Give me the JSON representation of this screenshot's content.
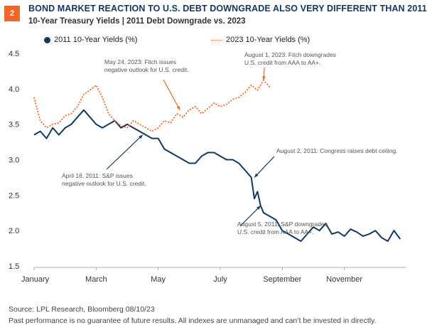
{
  "header": {
    "badge": "2",
    "title": "BOND MARKET REACTION TO U.S. DEBT DOWNGRADE ALSO VERY DIFFERENT THAN 2011",
    "subtitle": "10-Year Treasury Yields | 2011 Debt Downgrade vs. 2023"
  },
  "footer": {
    "source": "Source: LPL Research, Bloomberg 08/10/23",
    "disclaimer": "Past performance is no guarantee of future results. All indexes are unmanaged and can’t be invested in directly."
  },
  "colors": {
    "series_2011": "#12385e",
    "series_2023": "#f0672a",
    "title": "#12385e",
    "badge": "#f0672a"
  },
  "chart_data": {
    "type": "line",
    "ylim": [
      1.5,
      4.5
    ],
    "y_ticks": [
      "4.5",
      "4.0",
      "3.5",
      "3.0",
      "2.5",
      "2.0",
      "1.5"
    ],
    "x_ticks": [
      "January",
      "March",
      "May",
      "July",
      "September",
      "November"
    ],
    "xlim": [
      0,
      12
    ],
    "grid": "none",
    "legend": "top",
    "series": [
      {
        "name": "2011 10-Year Yields (%)",
        "style": "solid",
        "x": [
          0.0,
          0.2,
          0.4,
          0.6,
          0.8,
          1.0,
          1.2,
          1.4,
          1.6,
          1.8,
          2.0,
          2.2,
          2.4,
          2.6,
          2.8,
          3.0,
          3.2,
          3.4,
          3.6,
          3.8,
          4.0,
          4.2,
          4.4,
          4.6,
          4.8,
          5.0,
          5.2,
          5.4,
          5.6,
          5.8,
          6.0,
          6.2,
          6.4,
          6.6,
          6.8,
          7.0,
          7.1,
          7.2,
          7.3,
          7.4,
          7.6,
          7.8,
          8.0,
          8.2,
          8.4,
          8.6,
          8.8,
          9.0,
          9.2,
          9.4,
          9.6,
          9.8,
          10.0,
          10.2,
          10.4,
          10.6,
          10.8,
          11.0,
          11.2,
          11.4,
          11.6,
          11.8
        ],
        "values": [
          3.35,
          3.4,
          3.3,
          3.45,
          3.35,
          3.45,
          3.5,
          3.6,
          3.7,
          3.6,
          3.5,
          3.45,
          3.5,
          3.55,
          3.45,
          3.5,
          3.45,
          3.4,
          3.35,
          3.3,
          3.3,
          3.15,
          3.1,
          3.05,
          3.0,
          2.95,
          2.95,
          3.05,
          3.1,
          3.1,
          3.05,
          3.0,
          3.0,
          2.95,
          2.85,
          2.75,
          2.45,
          2.55,
          2.35,
          2.25,
          2.2,
          2.15,
          2.0,
          1.95,
          1.9,
          1.85,
          1.95,
          2.05,
          2.0,
          2.1,
          1.95,
          1.98,
          1.92,
          2.02,
          1.98,
          1.92,
          1.95,
          2.0,
          1.9,
          1.85,
          2.0,
          1.88
        ]
      },
      {
        "name": "2023 10-Year Yields (%)",
        "style": "dotted",
        "x": [
          0.0,
          0.2,
          0.4,
          0.6,
          0.8,
          1.0,
          1.2,
          1.4,
          1.6,
          1.8,
          2.0,
          2.2,
          2.4,
          2.6,
          2.8,
          3.0,
          3.2,
          3.4,
          3.6,
          3.8,
          4.0,
          4.2,
          4.4,
          4.6,
          4.8,
          5.0,
          5.2,
          5.4,
          5.6,
          5.8,
          6.0,
          6.2,
          6.4,
          6.6,
          6.8,
          7.0,
          7.2,
          7.4,
          7.6
        ],
        "values": [
          3.88,
          3.55,
          3.45,
          3.5,
          3.52,
          3.62,
          3.65,
          3.75,
          3.92,
          3.98,
          4.05,
          3.88,
          3.65,
          3.55,
          3.48,
          3.45,
          3.55,
          3.5,
          3.45,
          3.4,
          3.45,
          3.55,
          3.52,
          3.65,
          3.6,
          3.7,
          3.75,
          3.65,
          3.72,
          3.8,
          3.75,
          3.78,
          3.85,
          3.88,
          3.95,
          4.05,
          3.98,
          4.12,
          4.02
        ]
      }
    ],
    "annotations": [
      {
        "lines": [
          "May 24, 2023: Fitch issues",
          "negative outlook for U.S. credit."
        ],
        "x": 4.7,
        "y": 3.7
      },
      {
        "lines": [
          "August 1, 2023: Fitch downgrades",
          "U.S. credit from AAA to AA+."
        ],
        "x": 7.4,
        "y": 4.12
      },
      {
        "lines": [
          "August 2, 2011: Congress raises debt ceiling."
        ],
        "x": 7.1,
        "y": 2.75
      },
      {
        "lines": [
          "April 18, 2011: S&P issues",
          "negative outlook for U.S. credit."
        ],
        "x": 3.5,
        "y": 3.35
      },
      {
        "lines": [
          "August 5, 2011: S&P downgrades",
          "U.S. credit from AAA to AA+."
        ],
        "x": 7.3,
        "y": 2.35
      }
    ]
  }
}
